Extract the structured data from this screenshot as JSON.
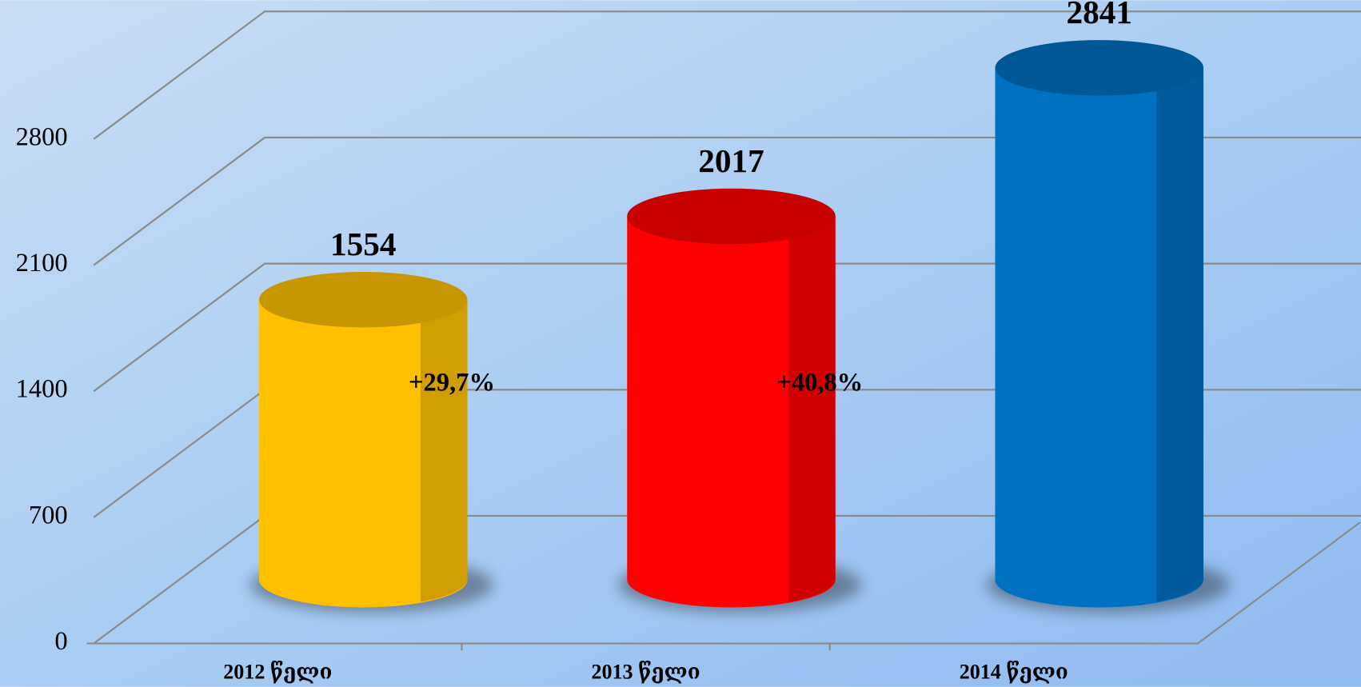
{
  "chart_data": {
    "type": "bar3d",
    "categories": [
      "2012 წელი",
      "2013 წელი",
      "2014 წელი"
    ],
    "values": [
      1554,
      2017,
      2841
    ],
    "colors": [
      "#ffc000",
      "#ff0000",
      "#0070c0"
    ],
    "ylim": [
      0,
      2800
    ],
    "yticks": [
      0,
      700,
      1400,
      2100,
      2800
    ],
    "grid": true,
    "annotations": [
      "+29,7%",
      "+40,8%"
    ]
  }
}
